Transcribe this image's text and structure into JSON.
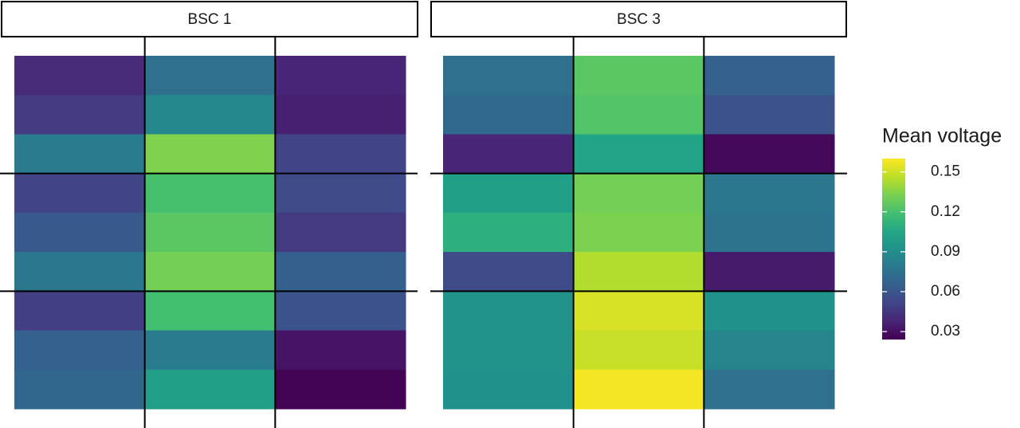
{
  "chart_data": {
    "type": "heatmap",
    "panels": [
      {
        "title": "BSC 1",
        "values": [
          [
            0.04,
            0.074,
            0.038
          ],
          [
            0.047,
            0.087,
            0.036
          ],
          [
            0.08,
            0.134,
            0.051
          ],
          [
            0.051,
            0.12,
            0.054
          ],
          [
            0.062,
            0.125,
            0.047
          ],
          [
            0.078,
            0.131,
            0.065
          ],
          [
            0.049,
            0.119,
            0.058
          ],
          [
            0.066,
            0.08,
            0.031
          ],
          [
            0.069,
            0.101,
            0.025
          ]
        ]
      },
      {
        "title": "BSC 3",
        "values": [
          [
            0.074,
            0.125,
            0.066
          ],
          [
            0.07,
            0.123,
            0.058
          ],
          [
            0.038,
            0.103,
            0.027
          ],
          [
            0.101,
            0.131,
            0.078
          ],
          [
            0.11,
            0.133,
            0.076
          ],
          [
            0.054,
            0.144,
            0.034
          ],
          [
            0.093,
            0.152,
            0.092
          ],
          [
            0.093,
            0.148,
            0.085
          ],
          [
            0.092,
            0.158,
            0.074
          ]
        ]
      }
    ],
    "colorbar_title": "Mean voltage",
    "clim": [
      0.024,
      0.16
    ],
    "cticks": [
      0.03,
      0.06,
      0.09,
      0.12,
      0.15
    ],
    "colormap": [
      "#440154",
      "#482475",
      "#414487",
      "#355f8d",
      "#2a788e",
      "#21918c",
      "#22a884",
      "#44bf70",
      "#7ad151",
      "#bddf26",
      "#fde725"
    ]
  }
}
